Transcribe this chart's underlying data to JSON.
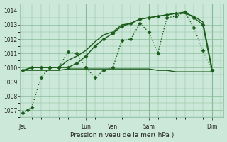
{
  "title": "Pression niveau de la mer( hPa )",
  "background_color": "#cce8d8",
  "grid_color": "#88bb99",
  "line_color": "#1a5c1a",
  "ylim": [
    1006.5,
    1014.5
  ],
  "yticks": [
    1007,
    1008,
    1009,
    1010,
    1011,
    1012,
    1013,
    1014
  ],
  "xlim": [
    -0.3,
    22.3
  ],
  "day_ticks": [
    0.0,
    7.0,
    10.0,
    14.0,
    21.0
  ],
  "day_labels": [
    "Jeu",
    "Lun",
    "Ven",
    "Sam",
    "Dim"
  ],
  "series": [
    {
      "x": [
        0,
        0.5,
        1,
        2,
        3,
        4,
        5,
        6,
        7,
        8,
        9,
        10,
        11,
        12,
        13,
        14,
        15,
        16,
        17,
        18,
        19,
        20,
        21
      ],
      "y": [
        1006.8,
        1007.0,
        1007.2,
        1009.3,
        1010.0,
        1010.0,
        1011.1,
        1011.0,
        1010.0,
        1009.3,
        1009.8,
        1010.0,
        1011.9,
        1012.0,
        1013.1,
        1012.5,
        1011.0,
        1013.5,
        1013.6,
        1013.9,
        1012.8,
        1011.2,
        1009.8
      ],
      "linestyle": "dotted",
      "marker": "D",
      "markersize": 2.5,
      "linewidth": 1.0
    },
    {
      "x": [
        0,
        1,
        2,
        3,
        4,
        5,
        6,
        7,
        8,
        9,
        10,
        11,
        12,
        13,
        14,
        15,
        16,
        17,
        18,
        19,
        20,
        21
      ],
      "y": [
        1009.8,
        1010.0,
        1010.0,
        1010.0,
        1010.0,
        1010.5,
        1010.8,
        1011.2,
        1011.8,
        1012.3,
        1012.5,
        1013.0,
        1013.1,
        1013.4,
        1013.5,
        1013.6,
        1013.7,
        1013.8,
        1013.8,
        1013.6,
        1013.2,
        1010.0
      ],
      "linestyle": "solid",
      "marker": null,
      "markersize": 0,
      "linewidth": 1.0
    },
    {
      "x": [
        0,
        1,
        2,
        3,
        4,
        5,
        6,
        7,
        8,
        9,
        10,
        11,
        12,
        13,
        14,
        15,
        16,
        17,
        18,
        19,
        20,
        21
      ],
      "y": [
        1009.8,
        1010.0,
        1010.0,
        1010.0,
        1010.0,
        1010.0,
        1010.3,
        1010.8,
        1011.5,
        1012.0,
        1012.4,
        1012.9,
        1013.1,
        1013.4,
        1013.5,
        1013.6,
        1013.7,
        1013.8,
        1013.9,
        1013.5,
        1013.0,
        1009.8
      ],
      "linestyle": "solid",
      "marker": "D",
      "markersize": 2.5,
      "linewidth": 1.0
    },
    {
      "x": [
        0,
        1,
        2,
        3,
        4,
        5,
        6,
        7,
        8,
        9,
        10,
        11,
        12,
        13,
        14,
        15,
        16,
        17,
        18,
        19,
        20,
        21
      ],
      "y": [
        1009.8,
        1009.8,
        1009.8,
        1009.8,
        1009.8,
        1009.9,
        1009.9,
        1009.9,
        1009.9,
        1009.9,
        1009.9,
        1009.9,
        1009.9,
        1009.9,
        1009.9,
        1009.8,
        1009.8,
        1009.7,
        1009.7,
        1009.7,
        1009.7,
        1009.7
      ],
      "linestyle": "solid",
      "marker": null,
      "markersize": 0,
      "linewidth": 1.0
    }
  ]
}
